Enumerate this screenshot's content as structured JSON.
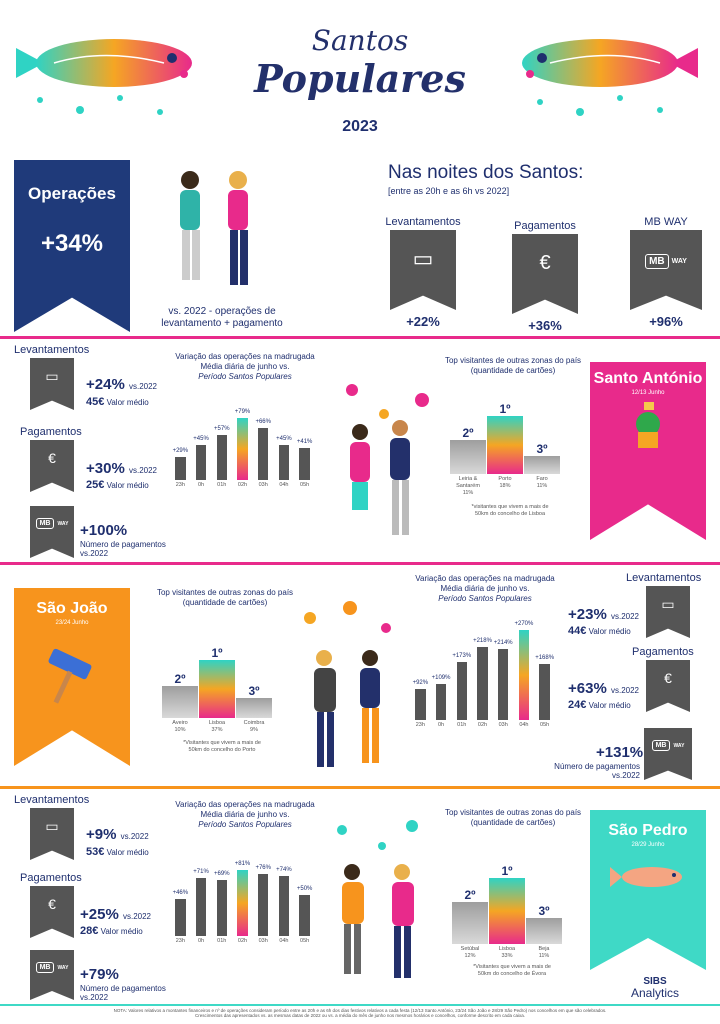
{
  "header": {
    "title_line1": "Santos",
    "title_line2": "Populares",
    "year": "2023"
  },
  "hero": {
    "operations_label": "Operações",
    "operations_value": "+34%",
    "caption_line1": "vs. 2022 - operações de",
    "caption_line2": "levantamento + pagamento",
    "nights_title": "Nas noites dos Santos:",
    "nights_subtitle": "[entre as 20h e as 6h vs 2022]",
    "cards": [
      {
        "label": "Levantamentos",
        "value": "+22%",
        "icon": "atm-cash-icon"
      },
      {
        "label": "Pagamentos",
        "value": "+36%",
        "icon": "hand-coin-icon"
      },
      {
        "label": "MB WAY",
        "value": "+96%",
        "icon": "mbway-logo-icon"
      }
    ]
  },
  "common": {
    "vs2022": "vs.2022",
    "valor_medio": "Valor médio",
    "num_pagamentos_line1": "Número de pagamentos",
    "num_pagamentos_line2": "vs.2022",
    "var_title_line1": "Variação das operações na madrugada",
    "var_title_line2": "Média diária de junho vs.",
    "var_title_line3": "Período Santos Populares",
    "top_title_line1": "Top visitantes de outras zonas do país",
    "top_title_line2": "(quantidade de cartões)",
    "levantamentos": "Levantamentos",
    "pagamentos": "Pagamentos",
    "mb": "MB",
    "way": "WAY",
    "p1": "1º",
    "p2": "2º",
    "p3": "3º"
  },
  "sections": [
    {
      "saint": "Santo António",
      "date": "12/13 Junho",
      "lev_pct": "+24%",
      "lev_avg": "45€",
      "pag_pct": "+30%",
      "pag_avg": "25€",
      "mbway_pct": "+100%",
      "chart_data": {
        "type": "bar",
        "categories": [
          "23h",
          "0h",
          "01h",
          "02h",
          "03h",
          "04h",
          "05h"
        ],
        "values": [
          29,
          45,
          57,
          79,
          66,
          45,
          41
        ],
        "labels": [
          "+29%",
          "+45%",
          "+57%",
          "+79%",
          "+66%",
          "+45%",
          "+41%"
        ],
        "highlight_index": 3
      },
      "podium": {
        "first": {
          "name": "Porto",
          "pct": "18%"
        },
        "second": {
          "name": "Leiria & Santarém",
          "pct": "11%"
        },
        "third": {
          "name": "Faro",
          "pct": "11%"
        },
        "note_line1": "*visitantes que vivem a mais de",
        "note_line2": "50km do concelho de Lisboa"
      }
    },
    {
      "saint": "São João",
      "date": "23/24 Junho",
      "lev_pct": "+23%",
      "lev_avg": "44€",
      "pag_pct": "+63%",
      "pag_avg": "24€",
      "mbway_pct": "+131%",
      "chart_data": {
        "type": "bar",
        "categories": [
          "23h",
          "0h",
          "01h",
          "02h",
          "03h",
          "04h",
          "05h"
        ],
        "values": [
          92,
          109,
          173,
          218,
          214,
          270,
          168
        ],
        "labels": [
          "+92%",
          "+109%",
          "+173%",
          "+218%",
          "+214%",
          "+270%",
          "+168%"
        ],
        "highlight_index": 5
      },
      "podium": {
        "first": {
          "name": "Lisboa",
          "pct": "37%"
        },
        "second": {
          "name": "Aveiro",
          "pct": "10%"
        },
        "third": {
          "name": "Coimbra",
          "pct": "9%"
        },
        "note_line1": "*Visitantes que vivem a mais de",
        "note_line2": "50km do concelho do Porto"
      }
    },
    {
      "saint": "São Pedro",
      "date": "28/29 Junho",
      "lev_pct": "+9%",
      "lev_avg": "53€",
      "pag_pct": "+25%",
      "pag_avg": "28€",
      "mbway_pct": "+79%",
      "chart_data": {
        "type": "bar",
        "categories": [
          "23h",
          "0h",
          "01h",
          "02h",
          "03h",
          "04h",
          "05h"
        ],
        "values": [
          46,
          71,
          69,
          81,
          76,
          74,
          50
        ],
        "labels": [
          "+46%",
          "+71%",
          "+69%",
          "+81%",
          "+76%",
          "+74%",
          "+50%"
        ],
        "highlight_index": 3
      },
      "podium": {
        "first": {
          "name": "Lisboa",
          "pct": "33%"
        },
        "second": {
          "name": "Setúbal",
          "pct": "12%"
        },
        "third": {
          "name": "Beja",
          "pct": "11%"
        },
        "note_line1": "*Visitantes que vivem a mais de",
        "note_line2": "50km do concelho de Évora"
      }
    }
  ],
  "footer": {
    "brand_line1": "SIBS",
    "brand_line2": "Analytics",
    "note_line1": "NOTA: Valores relativos a montantes financeiros e nº de operações consideram período entre as 20h e as 6h dos dias festivos relativos a cada festa (12/13 Santo António, 23/24 São João e 28/29 São Pedro) nos concelhos em que são celebrados.",
    "note_line2": "Crescimentos das apresentados vs. as mesmas datas de 2022 ou vs. a média do mês de junho nos mesmos horários e concelhos, conforme descrito em cada caixa."
  },
  "colors": {
    "navy": "#1f2f6e",
    "pink": "#e82a8b",
    "orange": "#f7941d",
    "teal": "#3fd9c6",
    "grey": "#555555"
  }
}
